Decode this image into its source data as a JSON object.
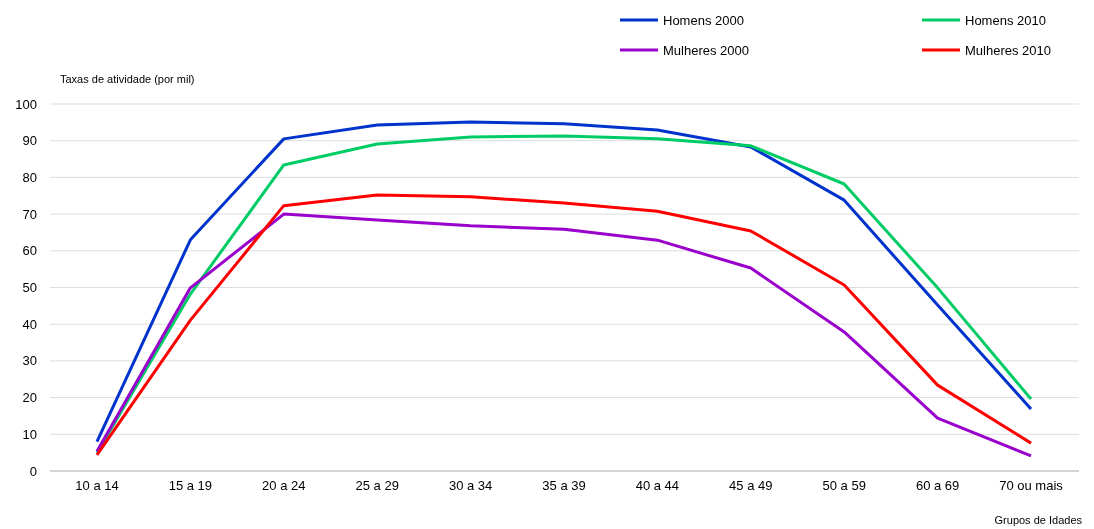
{
  "chart_data": {
    "type": "line",
    "xlabel": "Grupos de Idades",
    "ylabel": "Taxas de atividade (por mil)",
    "categories": [
      "10 a 14",
      "15 a 19",
      "20 a 24",
      "25 a 29",
      "30 a 34",
      "35 a 39",
      "40 a 44",
      "45 a 49",
      "50 a 59",
      "60 a 69",
      "70 ou mais"
    ],
    "series": [
      {
        "name": "Homens 2000",
        "color": "#0033cc",
        "values": [
          8,
          63,
          90.5,
          94.3,
          95.1,
          94.6,
          92.9,
          88.3,
          73.8,
          45.2,
          16.9
        ]
      },
      {
        "name": "Homens 2010",
        "color": "#00cc66",
        "values": [
          5,
          48.2,
          83.4,
          89.1,
          91,
          91.3,
          90.5,
          88.6,
          78.2,
          49.9,
          19.6
        ]
      },
      {
        "name": "Mulheres 2000",
        "color": "#9900cc",
        "values": [
          5.4,
          49.9,
          70,
          68.4,
          66.8,
          65.9,
          62.9,
          55.3,
          37.9,
          14.4,
          4.1
        ]
      },
      {
        "name": "Mulheres 2010",
        "color": "#ff0000",
        "values": [
          4.4,
          41.1,
          72.3,
          75.2,
          74.7,
          73,
          70.8,
          65.4,
          50.7,
          23.4,
          7.6
        ]
      }
    ],
    "ylim": [
      0,
      100
    ],
    "yticks": [
      0,
      10,
      20,
      30,
      40,
      50,
      60,
      70,
      80,
      90,
      100
    ],
    "grid": "y",
    "legend": "top right",
    "marker": "none",
    "line_style": "solid"
  }
}
